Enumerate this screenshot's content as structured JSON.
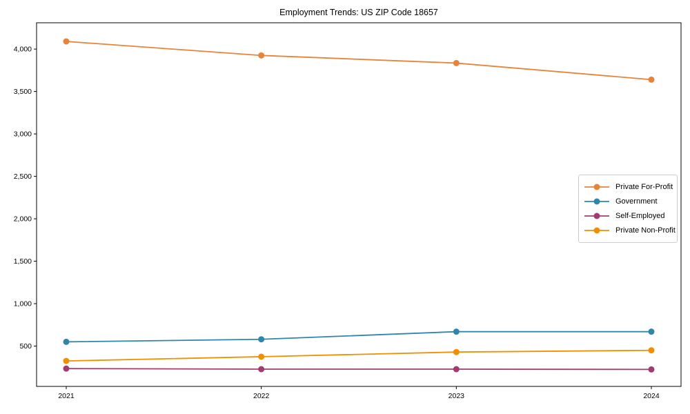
{
  "figure": {
    "background": "#ffffff",
    "frame_color": "#000000"
  },
  "chart_data": {
    "type": "line",
    "title": "Employment Trends: US ZIP Code 18657",
    "x": [
      "2021",
      "2022",
      "2023",
      "2024"
    ],
    "xlabel": "",
    "ylabel": "",
    "ylim": [
      25,
      4310
    ],
    "yticks": [
      500,
      1000,
      1500,
      2000,
      2500,
      3000,
      3500,
      4000
    ],
    "ytick_labels": [
      "500",
      "1,000",
      "1,500",
      "2,000",
      "2,500",
      "3,000",
      "3,500",
      "4,000"
    ],
    "grid": false,
    "legend_position": "center-right",
    "marker": "circle",
    "series": [
      {
        "name": "Private For-Profit",
        "color": "#E8833A",
        "values": [
          4090,
          3925,
          3835,
          3640
        ]
      },
      {
        "name": "Government",
        "color": "#2E86AB",
        "values": [
          550,
          580,
          670,
          670
        ]
      },
      {
        "name": "Self-Employed",
        "color": "#A23B72",
        "values": [
          235,
          228,
          228,
          225
        ]
      },
      {
        "name": "Private Non-Profit",
        "color": "#F18F01",
        "values": [
          325,
          375,
          430,
          450
        ]
      }
    ]
  }
}
